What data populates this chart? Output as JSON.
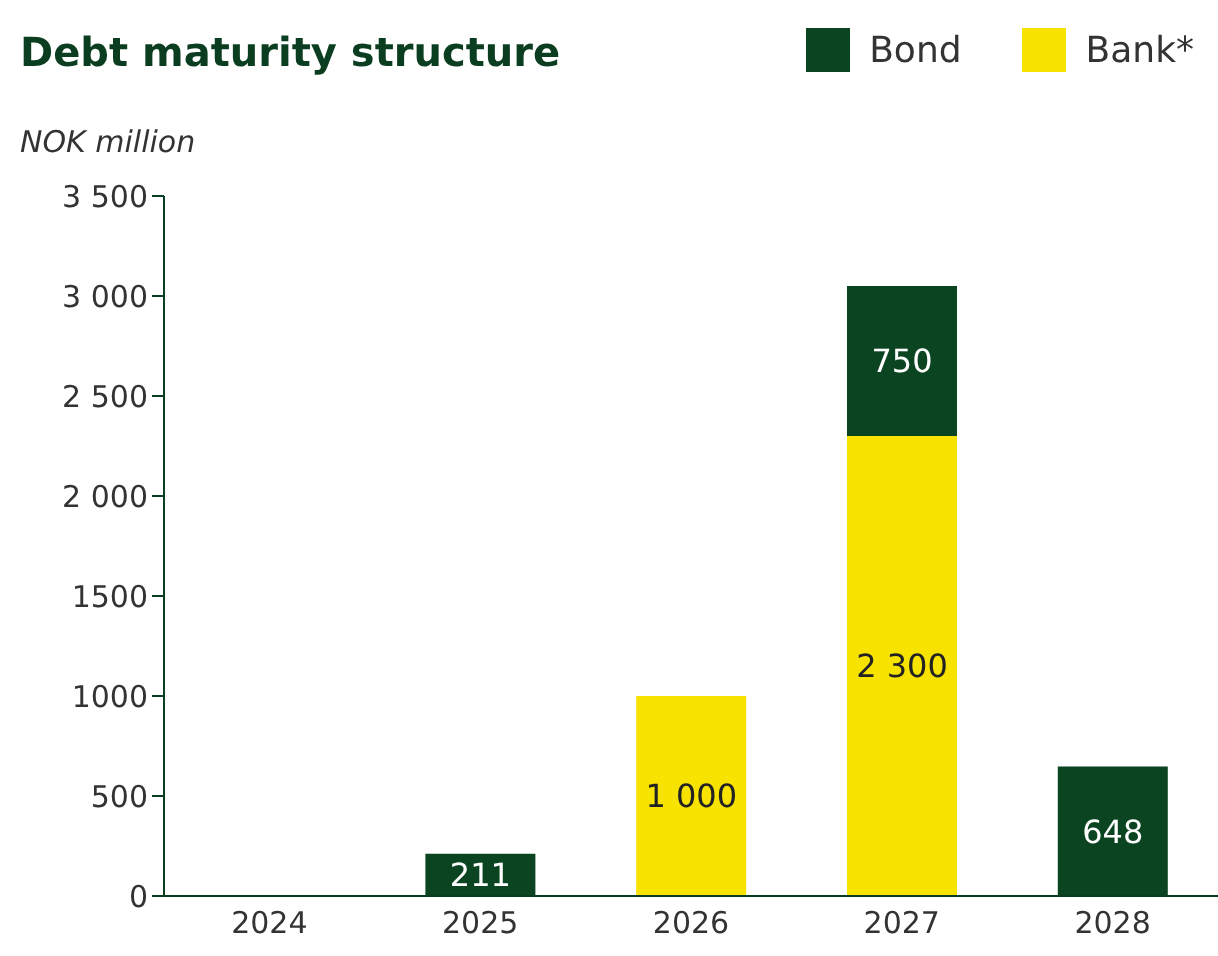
{
  "chart_data": {
    "type": "bar",
    "title": "Debt maturity structure",
    "ylabel": "NOK million",
    "stacked": true,
    "categories": [
      "2024",
      "2025",
      "2026",
      "2027",
      "2028"
    ],
    "series": [
      {
        "name": "Bank*",
        "color": "#f7e200",
        "values": [
          null,
          null,
          1000,
          2300,
          null
        ],
        "value_labels": [
          null,
          null,
          "1 000",
          "2 300",
          null
        ]
      },
      {
        "name": "Bond",
        "color": "#0b4420",
        "values": [
          null,
          211,
          null,
          750,
          648
        ],
        "value_labels": [
          null,
          "211",
          null,
          "750",
          "648"
        ]
      }
    ],
    "ylim": [
      0,
      3500
    ],
    "yticks": [
      0,
      500,
      1000,
      1500,
      {
        "value": 2000,
        "label": "2 000"
      },
      {
        "value": 2500,
        "label": "2 500"
      },
      {
        "value": 3000,
        "label": "3 000"
      },
      {
        "value": 3500,
        "label": "3 500"
      }
    ],
    "grid": false,
    "legend": "top right"
  }
}
